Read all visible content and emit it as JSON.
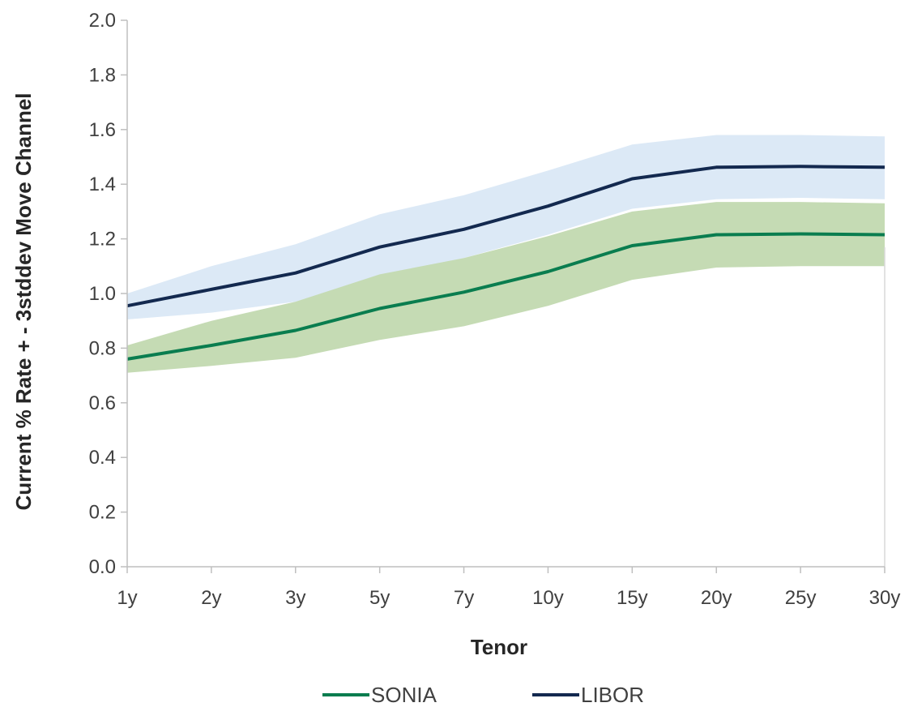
{
  "chart_data": {
    "type": "line",
    "title": "",
    "xlabel": "Tenor",
    "ylabel": "Current % Rate + - 3stddev Move Channel",
    "categories": [
      "1y",
      "2y",
      "3y",
      "5y",
      "7y",
      "10y",
      "15y",
      "20y",
      "25y",
      "30y"
    ],
    "ylim": [
      0,
      2.0
    ],
    "yticks": [
      "0.0",
      "0.2",
      "0.4",
      "0.6",
      "0.8",
      "1.0",
      "1.2",
      "1.4",
      "1.6",
      "1.8",
      "2.0"
    ],
    "grid": false,
    "legend_position": "bottom",
    "series": [
      {
        "name": "SONIA",
        "color": "#0a7d4f",
        "band_color": "#c5dbb4",
        "values": [
          0.76,
          0.81,
          0.865,
          0.945,
          1.005,
          1.08,
          1.175,
          1.215,
          1.218,
          1.215
        ],
        "upper": [
          0.81,
          0.9,
          0.97,
          1.07,
          1.13,
          1.21,
          1.3,
          1.335,
          1.335,
          1.33
        ],
        "lower": [
          0.71,
          0.735,
          0.765,
          0.83,
          0.88,
          0.955,
          1.05,
          1.095,
          1.1,
          1.1
        ]
      },
      {
        "name": "LIBOR",
        "color": "#13294f",
        "band_color": "#dce9f6",
        "values": [
          0.955,
          1.015,
          1.075,
          1.17,
          1.235,
          1.32,
          1.42,
          1.462,
          1.465,
          1.462
        ],
        "upper": [
          1.0,
          1.1,
          1.18,
          1.29,
          1.36,
          1.45,
          1.545,
          1.58,
          1.58,
          1.575
        ],
        "lower": [
          0.905,
          0.93,
          0.97,
          1.065,
          1.13,
          1.215,
          1.31,
          1.345,
          1.35,
          1.345
        ]
      }
    ]
  }
}
